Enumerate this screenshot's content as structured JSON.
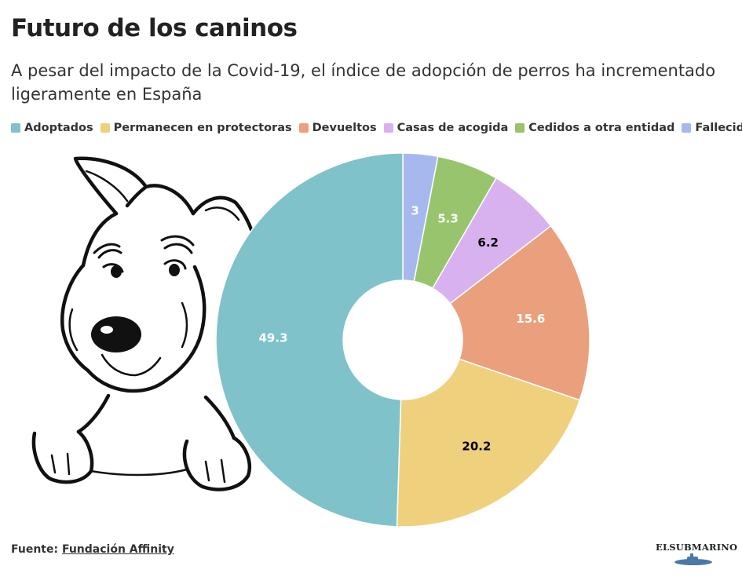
{
  "header": {
    "title": "Futuro de los caninos",
    "subtitle": "A pesar del impacto de la Covid-19, el índice de adopción de perros ha incrementado ligeramente en España"
  },
  "footer": {
    "source_label": "Fuente:",
    "source_name": "Fundación Affinity"
  },
  "brand": {
    "name": "ELSUBMARINO"
  },
  "chart_data": {
    "type": "pie",
    "variant": "donut",
    "title": "Futuro de los caninos",
    "legend_position": "top",
    "slices": [
      {
        "label": "Fallecidos",
        "value": 3,
        "color": "#a7b8ee",
        "label_color": "#ffffff"
      },
      {
        "label": "Cedidos a otra entidad",
        "value": 5.3,
        "color": "#97c46c",
        "label_color": "#ffffff"
      },
      {
        "label": "Casas de acogida",
        "value": 6.2,
        "color": "#d8b2ee",
        "label_color": "#000000"
      },
      {
        "label": "Devueltos",
        "value": 15.6,
        "color": "#eba07d",
        "label_color": "#ffffff"
      },
      {
        "label": "Permanecen en protectoras",
        "value": 20.2,
        "color": "#efd07d",
        "label_color": "#000000"
      },
      {
        "label": "Adoptados",
        "value": 49.3,
        "color": "#7fc2ca",
        "label_color": "#ffffff"
      }
    ],
    "legend": [
      {
        "label": "Adoptados",
        "color": "#7fc2ca"
      },
      {
        "label": "Permanecen en protectoras",
        "color": "#efd07d"
      },
      {
        "label": "Devueltos",
        "color": "#eba07d"
      },
      {
        "label": "Casas de acogida",
        "color": "#d8b2ee"
      },
      {
        "label": "Cedidos a otra entidad",
        "color": "#97c46c"
      },
      {
        "label": "Fallecidos",
        "color": "#a7b8ee"
      }
    ]
  }
}
